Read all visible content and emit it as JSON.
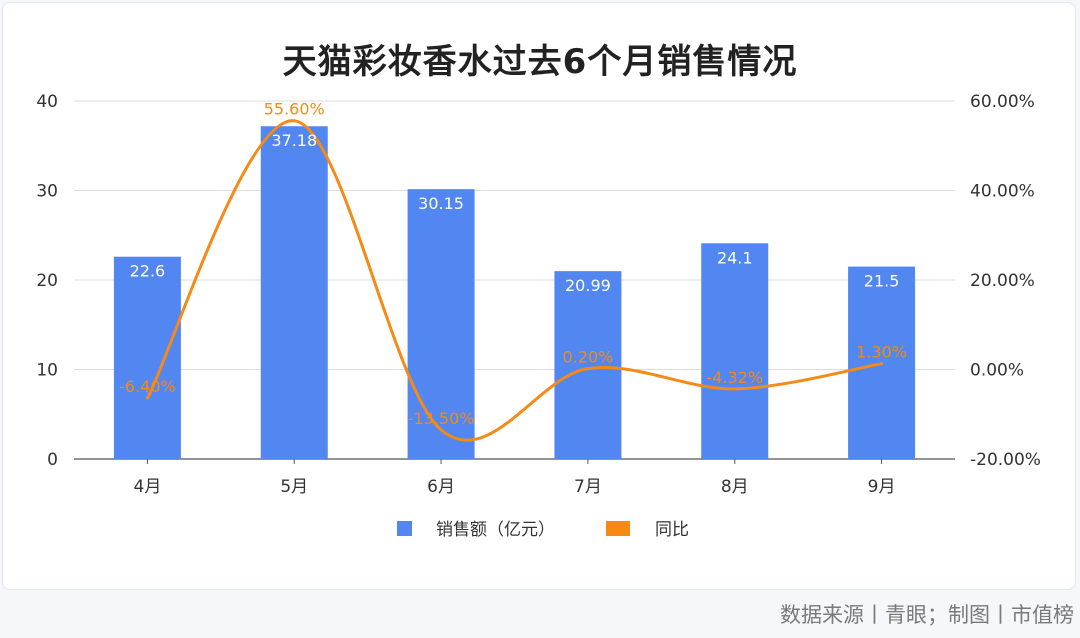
{
  "chart_data": {
    "type": "bar",
    "title": "天猫彩妆香水过去6个月销售情况",
    "categories": [
      "4月",
      "5月",
      "6月",
      "7月",
      "8月",
      "9月"
    ],
    "series": [
      {
        "name": "销售额（亿元）",
        "type": "bar",
        "axis": "left",
        "color": "#5286f0",
        "values": [
          22.6,
          37.18,
          30.15,
          20.99,
          24.1,
          21.5
        ],
        "labels": [
          "22.6",
          "37.18",
          "30.15",
          "20.99",
          "24.1",
          "21.5"
        ]
      },
      {
        "name": "同比",
        "type": "line",
        "axis": "right",
        "color": "#f58a14",
        "values": [
          -6.4,
          55.6,
          -13.5,
          0.2,
          -4.32,
          1.3
        ],
        "labels": [
          "-6.40%",
          "55.60%",
          "-13.50%",
          "0.20%",
          "-4.32%",
          "1.30%"
        ]
      }
    ],
    "y_left": {
      "min": 0,
      "max": 40,
      "ticks": [
        "0",
        "10",
        "20",
        "30",
        "40"
      ]
    },
    "y_right": {
      "min": -20,
      "max": 60,
      "ticks": [
        "-20.00%",
        "0.00%",
        "20.00%",
        "40.00%",
        "60.00%"
      ]
    },
    "grid": true,
    "legend_position": "bottom"
  },
  "footer": {
    "source": "数据来源丨青眼；制图丨市值榜"
  }
}
